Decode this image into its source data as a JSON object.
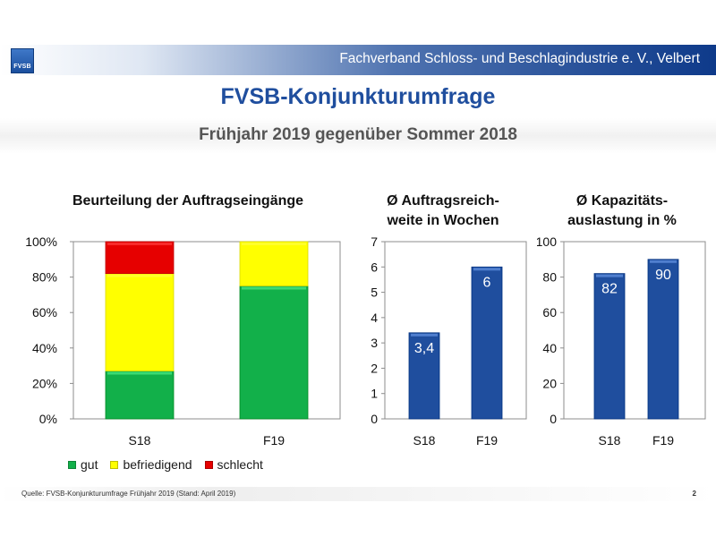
{
  "header": {
    "logo_text": "FVSB",
    "organization": "Fachverband Schloss- und Beschlagindustrie e. V., Velbert",
    "title": "FVSB-Konjunkturumfrage",
    "subtitle": "Frühjahr 2019 gegenüber Sommer 2018"
  },
  "chart_data": [
    {
      "type": "bar",
      "stacked": true,
      "title": "Beurteilung der Auftragseingänge",
      "categories": [
        "S18",
        "F19"
      ],
      "series": [
        {
          "name": "gut",
          "color": "#12b04a",
          "values": [
            27,
            75
          ]
        },
        {
          "name": "befriedigend",
          "color": "#ffff00",
          "values": [
            55,
            25
          ]
        },
        {
          "name": "schlecht",
          "color": "#e60000",
          "values": [
            18,
            0
          ]
        }
      ],
      "ylim": [
        0,
        100
      ],
      "yticks": [
        "0%",
        "20%",
        "40%",
        "60%",
        "80%",
        "100%"
      ],
      "grid": false,
      "legend": "bottom"
    },
    {
      "type": "bar",
      "title": "Ø Auftragsreich-weite in Wochen",
      "title_lines": [
        "Ø Auftragsreich-",
        "weite in Wochen"
      ],
      "categories": [
        "S18",
        "F19"
      ],
      "values": [
        3.4,
        6
      ],
      "data_labels": [
        "3,4",
        "6"
      ],
      "color": "#1f4e9e",
      "ylim": [
        0,
        7
      ],
      "yticks": [
        "0",
        "1",
        "2",
        "3",
        "4",
        "5",
        "6",
        "7"
      ],
      "grid": false
    },
    {
      "type": "bar",
      "title": "Ø Kapazitäts-auslastung in %",
      "title_lines": [
        "Ø Kapazitäts-",
        "auslastung in %"
      ],
      "categories": [
        "S18",
        "F19"
      ],
      "values": [
        82,
        90
      ],
      "data_labels": [
        "82",
        "90"
      ],
      "color": "#1f4e9e",
      "ylim": [
        0,
        100
      ],
      "yticks": [
        "0",
        "20",
        "40",
        "60",
        "80",
        "100"
      ],
      "grid": false
    }
  ],
  "footer": {
    "source": "Quelle:  FVSB-Konjunkturumfrage Frühjahr 2019  (Stand: April 2019)",
    "page": "2"
  }
}
